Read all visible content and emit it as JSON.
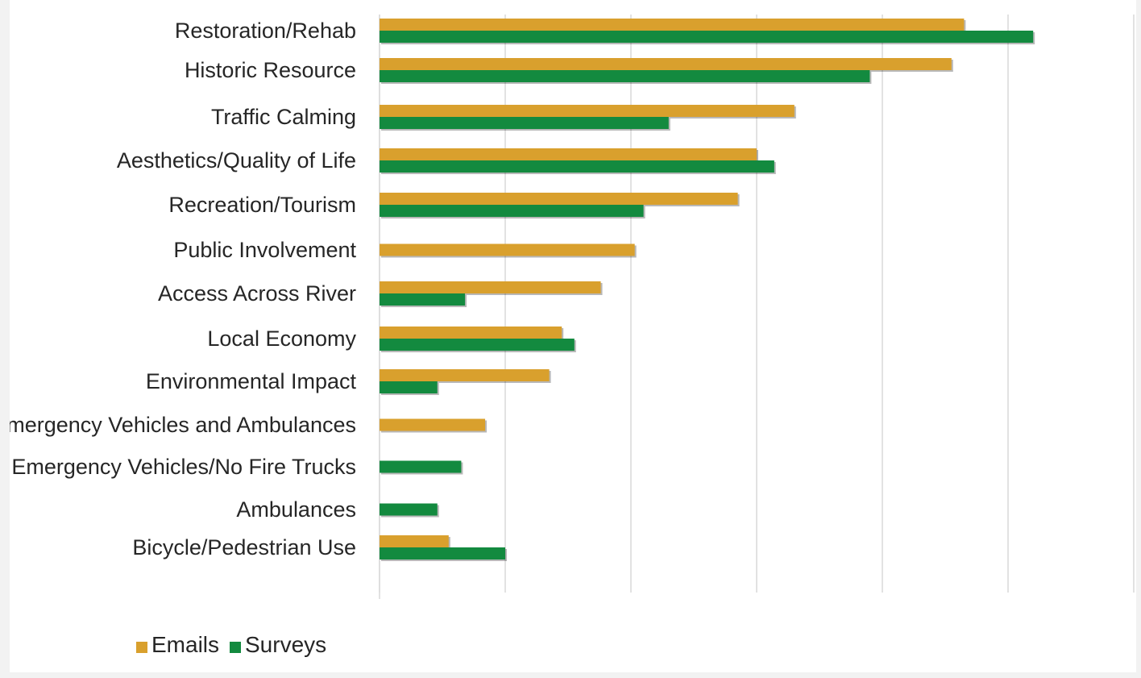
{
  "colors": {
    "emails": "#d9a02d",
    "surveys": "#138a3f",
    "grid": "#d9d9d9",
    "background": "#ffffff"
  },
  "chart_data": {
    "type": "bar",
    "orientation": "horizontal",
    "categories": [
      "Restoration/Rehab",
      "Historic Resource",
      "Traffic Calming",
      "Aesthetics/Quality of Life",
      "Recreation/Tourism",
      "Public Involvement",
      "Access Across River",
      "Local Economy",
      "Environmental Impact",
      "Emergency Vehicles and Ambulances",
      "Emergency Vehicles/No Fire Trucks",
      "Ambulances",
      "Bicycle/Pedestrian Use"
    ],
    "series": [
      {
        "name": "Emails",
        "values": [
          46.5,
          45.5,
          33.0,
          30.0,
          28.5,
          20.3,
          17.6,
          14.5,
          13.5,
          8.4,
          0,
          0,
          5.5
        ]
      },
      {
        "name": "Surveys",
        "values": [
          52.0,
          39.0,
          23.0,
          31.4,
          21.0,
          0,
          6.8,
          15.5,
          4.6,
          0,
          6.5,
          4.6,
          10.0
        ]
      }
    ],
    "xlim": [
      0,
      60
    ],
    "grid": true,
    "legend": "bottom-left",
    "title": "",
    "xlabel": "",
    "ylabel": ""
  }
}
